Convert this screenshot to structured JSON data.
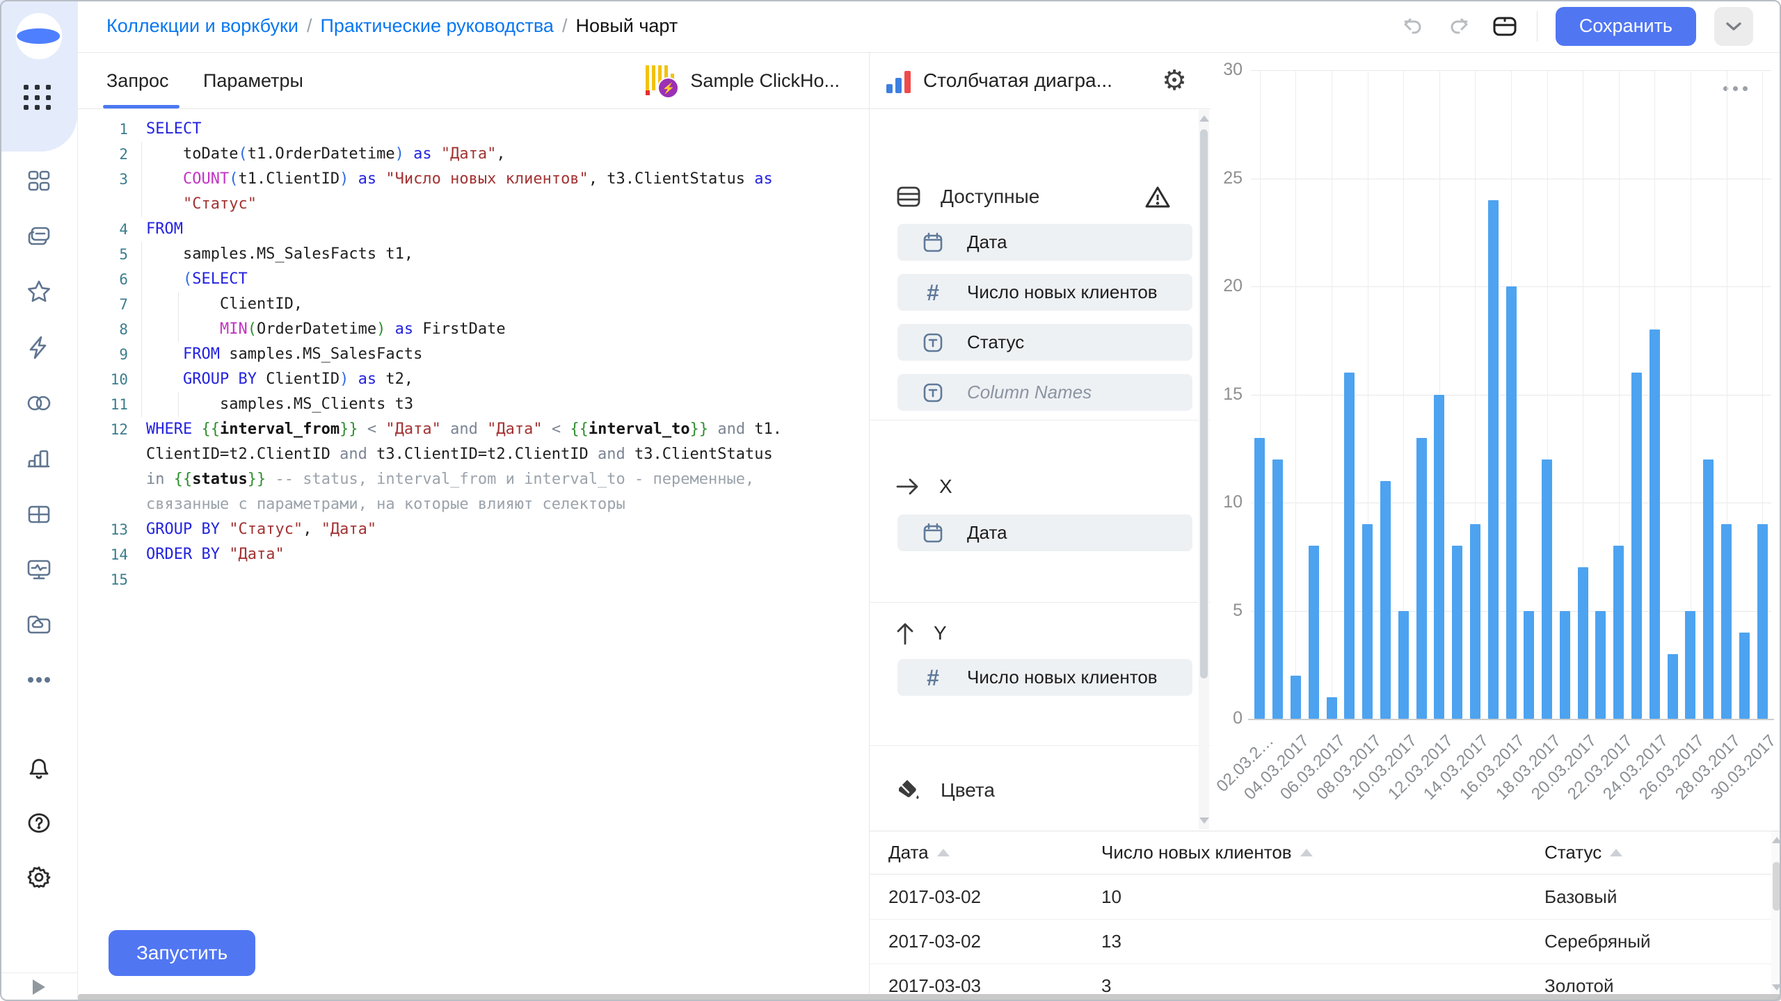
{
  "breadcrumb": {
    "separator": "/",
    "items": [
      {
        "label": "Коллекции и воркбуки",
        "link": true
      },
      {
        "label": "Практические руководства",
        "link": true
      },
      {
        "label": "Новый чарт",
        "link": false
      }
    ]
  },
  "header": {
    "save_label": "Сохранить",
    "icons": [
      "undo-icon",
      "redo-icon",
      "panel-toggle-icon",
      "chevron-down-icon"
    ]
  },
  "sidebar": {
    "items": [
      {
        "icon": "datalens-logo"
      },
      {
        "icon": "apps-grid-icon"
      },
      {
        "icon": "dashboard-icon"
      },
      {
        "icon": "collections-icon"
      },
      {
        "icon": "star-icon"
      },
      {
        "icon": "lightning-icon"
      },
      {
        "icon": "circles-icon"
      },
      {
        "icon": "bar-chart-icon"
      },
      {
        "icon": "table-icon"
      },
      {
        "icon": "monitor-icon"
      },
      {
        "icon": "folder-cloud-icon"
      },
      {
        "icon": "more-dots-icon"
      },
      {
        "icon": "bell-icon"
      },
      {
        "icon": "help-icon"
      },
      {
        "icon": "gear-icon"
      },
      {
        "icon": "expand-icon"
      }
    ]
  },
  "editor": {
    "tabs": [
      {
        "label": "Запрос",
        "active": true
      },
      {
        "label": "Параметры",
        "active": false
      }
    ],
    "dataset_name": "Sample ClickHo...",
    "run_label": "Запустить",
    "rows": [
      {
        "n": "1",
        "s": [
          [
            "k",
            "SELECT"
          ]
        ]
      },
      {
        "n": "2",
        "s": [
          [
            "p",
            "    toDate"
          ],
          [
            "b",
            "("
          ],
          [
            "p",
            "t1.OrderDatetime"
          ],
          [
            "b",
            ")"
          ],
          [
            "k",
            " as "
          ],
          [
            "s",
            "\"Дата\""
          ],
          [
            "p",
            ","
          ]
        ]
      },
      {
        "n": "3",
        "s": [
          [
            "p",
            "    "
          ],
          [
            "f",
            "COUNT"
          ],
          [
            "b",
            "("
          ],
          [
            "p",
            "t1.ClientID"
          ],
          [
            "b",
            ")"
          ],
          [
            "k",
            " as "
          ],
          [
            "s",
            "\"Число новых клиентов\""
          ],
          [
            "p",
            ", t3.ClientStatus"
          ],
          [
            "k",
            " as"
          ]
        ]
      },
      {
        "n": "",
        "s": [
          [
            "p",
            "    "
          ],
          [
            "s",
            "\"Статус\""
          ]
        ]
      },
      {
        "n": "4",
        "s": [
          [
            "k",
            "FROM"
          ]
        ]
      },
      {
        "n": "5",
        "s": [
          [
            "p",
            "    samples.MS_SalesFacts t1,"
          ]
        ]
      },
      {
        "n": "6",
        "s": [
          [
            "p",
            "    "
          ],
          [
            "b",
            "("
          ],
          [
            "k",
            "SELECT"
          ]
        ]
      },
      {
        "n": "7",
        "s": [
          [
            "p",
            "        ClientID,"
          ]
        ]
      },
      {
        "n": "8",
        "s": [
          [
            "p",
            "        "
          ],
          [
            "f",
            "MIN"
          ],
          [
            "g",
            "("
          ],
          [
            "p",
            "OrderDatetime"
          ],
          [
            "g",
            ")"
          ],
          [
            "k",
            " as "
          ],
          [
            "p",
            "FirstDate"
          ]
        ]
      },
      {
        "n": "9",
        "s": [
          [
            "p",
            "    "
          ],
          [
            "k",
            "FROM"
          ],
          [
            "p",
            " samples.MS_SalesFacts"
          ]
        ]
      },
      {
        "n": "10",
        "s": [
          [
            "p",
            "    "
          ],
          [
            "k",
            "GROUP BY"
          ],
          [
            "p",
            " ClientID"
          ],
          [
            "b",
            ")"
          ],
          [
            "k",
            " as "
          ],
          [
            "p",
            "t2,"
          ]
        ]
      },
      {
        "n": "11",
        "s": [
          [
            "p",
            "        samples.MS_Clients t3"
          ]
        ]
      },
      {
        "n": "12",
        "s": [
          [
            "k",
            "WHERE"
          ],
          [
            "p",
            " "
          ],
          [
            "g",
            "{{"
          ],
          [
            "v",
            "interval_from"
          ],
          [
            "g",
            "}}"
          ],
          [
            "o",
            " < "
          ],
          [
            "s",
            "\"Дата\""
          ],
          [
            "o",
            " and "
          ],
          [
            "s",
            "\"Дата\""
          ],
          [
            "o",
            " < "
          ],
          [
            "g",
            "{{"
          ],
          [
            "v",
            "interval_to"
          ],
          [
            "g",
            "}}"
          ],
          [
            "o",
            " and "
          ],
          [
            "p",
            "t1."
          ]
        ]
      },
      {
        "n": "",
        "s": [
          [
            "p",
            "ClientID=t2.ClientID"
          ],
          [
            "o",
            " and "
          ],
          [
            "p",
            "t3.ClientID=t2.ClientID"
          ],
          [
            "o",
            " and "
          ],
          [
            "p",
            "t3.ClientStatus"
          ]
        ]
      },
      {
        "n": "",
        "s": [
          [
            "o",
            "in "
          ],
          [
            "g",
            "{{"
          ],
          [
            "v",
            "status"
          ],
          [
            "g",
            "}}"
          ],
          [
            "c",
            " -- status, interval_from и interval_to - переменные,"
          ]
        ]
      },
      {
        "n": "",
        "s": [
          [
            "c",
            "связанные с параметрами, на которые влияют селекторы"
          ]
        ]
      },
      {
        "n": "13",
        "s": [
          [
            "k",
            "GROUP BY "
          ],
          [
            "s",
            "\"Статус\""
          ],
          [
            "p",
            ", "
          ],
          [
            "s",
            "\"Дата\""
          ]
        ]
      },
      {
        "n": "14",
        "s": [
          [
            "k",
            "ORDER BY "
          ],
          [
            "s",
            "\"Дата\""
          ]
        ]
      },
      {
        "n": "15",
        "s": []
      }
    ]
  },
  "wizard": {
    "chart_type_label": "Столбчатая диагра...",
    "sections": {
      "available": {
        "title": "Доступные",
        "fields": [
          {
            "icon": "calendar-icon",
            "label": "Дата",
            "ghost": false
          },
          {
            "icon": "hash-icon",
            "label": "Число новых клиентов",
            "ghost": false
          },
          {
            "icon": "type-icon",
            "label": "Статус",
            "ghost": false
          },
          {
            "icon": "type-icon",
            "label": "Column Names",
            "ghost": true
          }
        ]
      },
      "x": {
        "title": "X",
        "fields": [
          {
            "icon": "calendar-icon",
            "label": "Дата",
            "ghost": false
          }
        ]
      },
      "y": {
        "title": "Y",
        "fields": [
          {
            "icon": "hash-icon",
            "label": "Число новых клиентов",
            "ghost": false
          }
        ]
      },
      "colors": {
        "title": "Цвета",
        "fields": []
      }
    }
  },
  "chart_data": {
    "type": "bar",
    "title": "",
    "xlabel": "",
    "ylabel": "",
    "x": [
      "2017-03-02",
      "2017-03-03",
      "2017-03-04",
      "2017-03-05",
      "2017-03-06",
      "2017-03-07",
      "2017-03-08",
      "2017-03-09",
      "2017-03-10",
      "2017-03-11",
      "2017-03-12",
      "2017-03-13",
      "2017-03-14",
      "2017-03-15",
      "2017-03-16",
      "2017-03-17",
      "2017-03-18",
      "2017-03-19",
      "2017-03-20",
      "2017-03-21",
      "2017-03-22",
      "2017-03-23",
      "2017-03-24",
      "2017-03-25",
      "2017-03-26",
      "2017-03-27",
      "2017-03-28",
      "2017-03-29",
      "2017-03-30"
    ],
    "values": [
      13,
      12,
      2,
      8,
      1,
      16,
      9,
      11,
      5,
      13,
      15,
      8,
      9,
      24,
      20,
      5,
      12,
      5,
      7,
      5,
      8,
      16,
      18,
      3,
      5,
      12,
      9,
      4,
      9
    ],
    "xticks": [
      "02.03.2…",
      "04.03.2017",
      "06.03.2017",
      "08.03.2017",
      "10.03.2017",
      "12.03.2017",
      "14.03.2017",
      "16.03.2017",
      "18.03.2017",
      "20.03.2017",
      "22.03.2017",
      "24.03.2017",
      "26.03.2017",
      "28.03.2017",
      "30.03.2017"
    ],
    "yticks": [
      0,
      5,
      10,
      15,
      20,
      25,
      30
    ],
    "ylim": [
      0,
      30
    ],
    "grid": true,
    "legend": false,
    "bar_color": "#4da3f0"
  },
  "table": {
    "headers": [
      "Дата",
      "Число новых клиентов",
      "Статус"
    ],
    "rows": [
      [
        "2017-03-02",
        "10",
        "Базовый"
      ],
      [
        "2017-03-02",
        "13",
        "Серебряный"
      ],
      [
        "2017-03-03",
        "3",
        "Золотой"
      ]
    ]
  },
  "colors": {
    "accent": "#5076f2",
    "link": "#0a77f0",
    "bar": "#4da3f0",
    "sidebar_icon": "#5f7590",
    "field_bg": "#eef1f4",
    "chart_type_blue": "#3d7fe0",
    "chart_type_red": "#ef4a4a",
    "clickhouse_yellow": "#f2c20c",
    "clickhouse_red": "#e03131",
    "clickhouse_purple": "#9b30b5"
  }
}
